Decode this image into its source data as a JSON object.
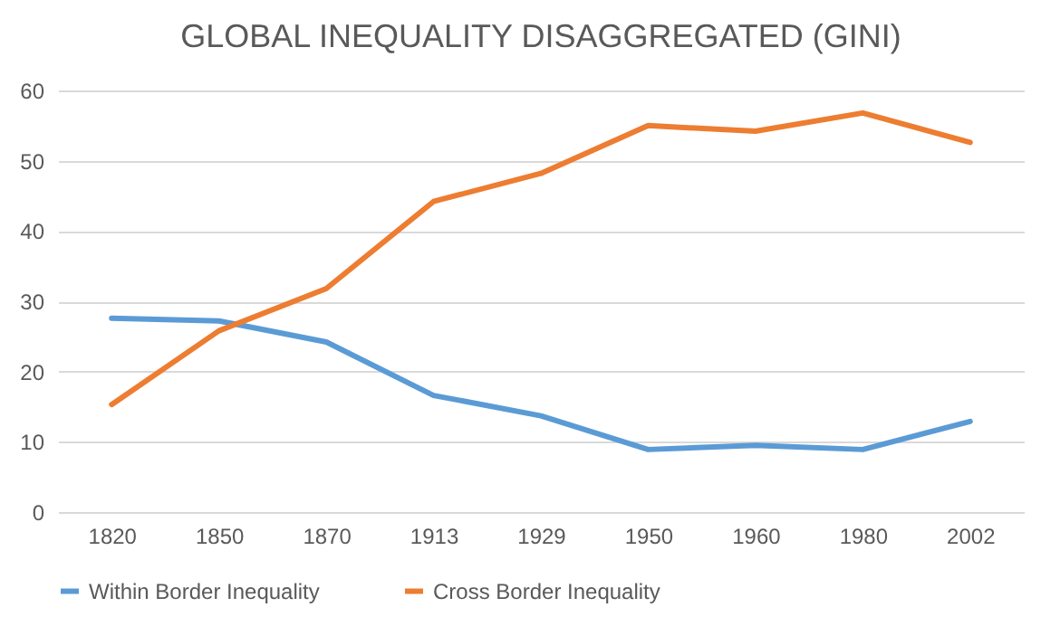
{
  "chart_data": {
    "type": "line",
    "title": "GLOBAL INEQUALITY DISAGGREGATED (GINI)",
    "categories": [
      "1820",
      "1850",
      "1870",
      "1913",
      "1929",
      "1950",
      "1960",
      "1980",
      "2002"
    ],
    "series": [
      {
        "name": "Within Border Inequality",
        "color": "#5b9bd5",
        "values": [
          27.6,
          27.2,
          24.2,
          16.6,
          13.7,
          8.9,
          9.5,
          8.9,
          12.9
        ]
      },
      {
        "name": "Cross Border Inequality",
        "color": "#ed7d31",
        "values": [
          15.3,
          25.8,
          31.8,
          44.2,
          48.2,
          55,
          54.2,
          56.8,
          52.6
        ]
      }
    ],
    "ylim": [
      0,
      60
    ],
    "yticks": [
      0,
      10,
      20,
      30,
      40,
      50,
      60
    ],
    "grid": "y",
    "legend": "bottom",
    "marker": "none",
    "line_style": "solid"
  }
}
